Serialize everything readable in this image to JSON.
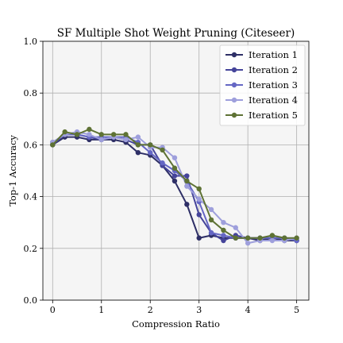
{
  "chart_data": {
    "type": "line",
    "title": "SF Multiple Shot Weight Pruning (Citeseer)",
    "xlabel": "Compression Ratio",
    "ylabel": "Top-1 Accuracy",
    "xlim": [
      -0.2,
      5.25
    ],
    "ylim": [
      0.0,
      1.0
    ],
    "xticks": [
      0,
      1,
      2,
      3,
      4,
      5
    ],
    "yticks": [
      0.0,
      0.2,
      0.4,
      0.6,
      0.8,
      1.0
    ],
    "grid": true,
    "legend_position": "top-right",
    "x": [
      0,
      0.25,
      0.5,
      0.75,
      1.0,
      1.25,
      1.5,
      1.75,
      2.0,
      2.25,
      2.5,
      2.75,
      3.0,
      3.25,
      3.5,
      3.75,
      4.0,
      4.25,
      4.5,
      4.75,
      5.0
    ],
    "series": [
      {
        "name": "Iteration 1",
        "color": "#2e2f66",
        "values": [
          0.6,
          0.63,
          0.63,
          0.62,
          0.62,
          0.62,
          0.61,
          0.57,
          0.56,
          0.52,
          0.46,
          0.37,
          0.24,
          0.25,
          0.24,
          0.24,
          0.24,
          0.23,
          0.24,
          0.23,
          0.23
        ]
      },
      {
        "name": "Iteration 2",
        "color": "#45449a",
        "values": [
          0.6,
          0.64,
          0.64,
          0.63,
          0.62,
          0.63,
          0.62,
          0.6,
          0.6,
          0.52,
          0.48,
          0.48,
          0.33,
          0.26,
          0.23,
          0.25,
          0.24,
          0.24,
          0.24,
          0.24,
          0.23
        ]
      },
      {
        "name": "Iteration 3",
        "color": "#6567c4",
        "values": [
          0.61,
          0.64,
          0.64,
          0.63,
          0.63,
          0.63,
          0.63,
          0.61,
          0.57,
          0.53,
          0.5,
          0.46,
          0.38,
          0.26,
          0.25,
          0.24,
          0.24,
          0.24,
          0.24,
          0.24,
          0.23
        ]
      },
      {
        "name": "Iteration 4",
        "color": "#9e9fdc",
        "values": [
          0.61,
          0.64,
          0.65,
          0.64,
          0.62,
          0.63,
          0.62,
          0.63,
          0.59,
          0.59,
          0.55,
          0.44,
          0.39,
          0.35,
          0.3,
          0.28,
          0.22,
          0.23,
          0.23,
          0.23,
          0.24
        ]
      },
      {
        "name": "Iteration 5",
        "color": "#5e7234",
        "values": [
          0.6,
          0.65,
          0.64,
          0.66,
          0.64,
          0.64,
          0.64,
          0.6,
          0.6,
          0.58,
          0.51,
          0.46,
          0.43,
          0.31,
          0.27,
          0.24,
          0.24,
          0.24,
          0.25,
          0.24,
          0.24
        ]
      }
    ]
  }
}
